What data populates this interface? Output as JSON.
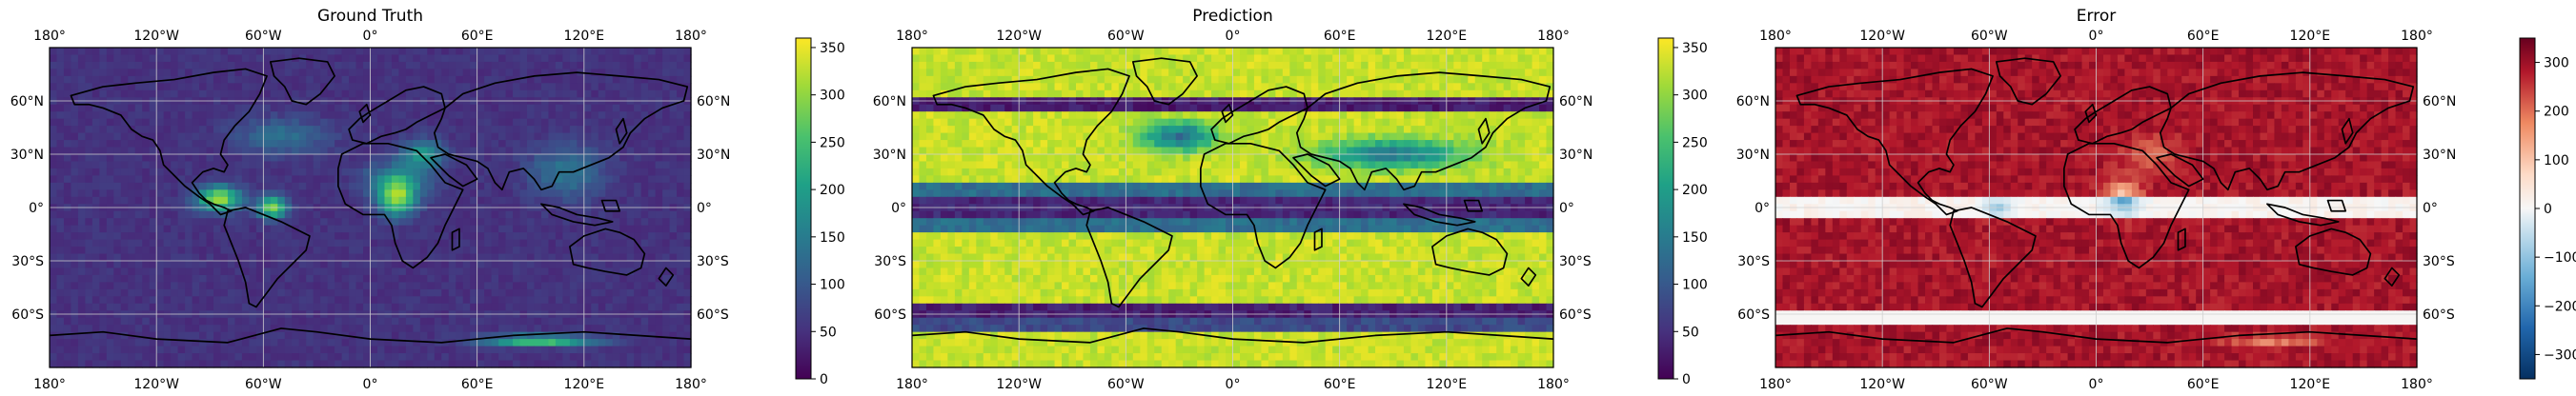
{
  "panels": [
    {
      "id": "ground-truth",
      "title": "Ground Truth",
      "colormap": "viridis",
      "colorbar": {
        "min": 0,
        "max": 360,
        "ticks": [
          "0",
          "50",
          "100",
          "150",
          "200",
          "250",
          "300",
          "350"
        ],
        "tick_values": [
          0,
          50,
          100,
          150,
          200,
          250,
          300,
          350
        ]
      },
      "field": "ground-truth"
    },
    {
      "id": "prediction",
      "title": "Prediction",
      "colormap": "viridis",
      "colorbar": {
        "min": 0,
        "max": 360,
        "ticks": [
          "0",
          "50",
          "100",
          "150",
          "200",
          "250",
          "300",
          "350"
        ],
        "tick_values": [
          0,
          50,
          100,
          150,
          200,
          250,
          300,
          350
        ]
      },
      "field": "prediction"
    },
    {
      "id": "error",
      "title": "Error",
      "colormap": "RdBu_r",
      "colorbar": {
        "min": -350,
        "max": 350,
        "ticks": [
          "−300",
          "−200",
          "−100",
          "0",
          "100",
          "200",
          "300"
        ],
        "tick_values": [
          -300,
          -200,
          -100,
          0,
          100,
          200,
          300
        ]
      },
      "field": "error"
    }
  ],
  "lon_ticks": [
    "180°",
    "120°W",
    "60°W",
    "0°",
    "60°E",
    "120°E",
    "180°"
  ],
  "lat_ticks": [
    "60°N",
    "30°N",
    "0°",
    "30°S",
    "60°S"
  ],
  "colors": {
    "coast": "#000000",
    "grid": "#cfcfcf"
  }
}
